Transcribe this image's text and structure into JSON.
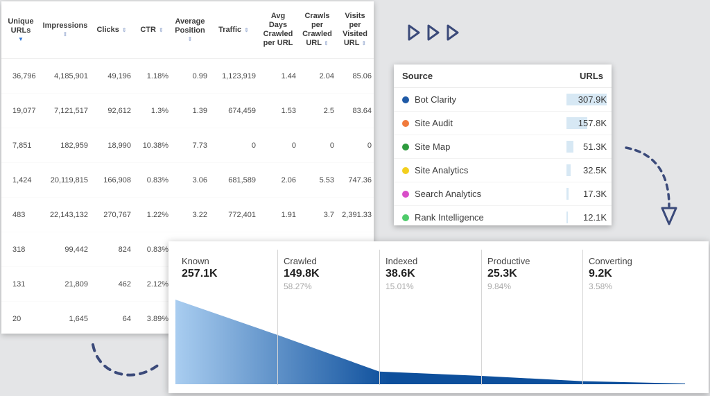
{
  "metrics_table": {
    "headers": [
      {
        "text": "Unique URLs",
        "lines": [
          "Unique",
          "URLs"
        ],
        "sort": "active"
      },
      {
        "text": "Impressions",
        "lines": [
          "Impressions"
        ],
        "sort": "default"
      },
      {
        "text": "Clicks",
        "lines": [
          "Clicks"
        ],
        "sort": "inline"
      },
      {
        "text": "CTR",
        "lines": [
          "CTR"
        ],
        "sort": "inline"
      },
      {
        "text": "Average Position",
        "lines": [
          "Average",
          "Position"
        ],
        "sort": "default"
      },
      {
        "text": "Traffic",
        "lines": [
          "Traffic"
        ],
        "sort": "inline"
      },
      {
        "text": "Avg Days Crawled per URL",
        "lines": [
          "Avg",
          "Days",
          "Crawled",
          "per URL"
        ],
        "sort": "none"
      },
      {
        "text": "Crawls per Crawled URL",
        "lines": [
          "Crawls",
          "per",
          "Crawled",
          "URL"
        ],
        "sort": "inline-last"
      },
      {
        "text": "Visits per Visited URL",
        "lines": [
          "Visits",
          "per",
          "Visited",
          "URL"
        ],
        "sort": "inline-last"
      }
    ],
    "rows": [
      [
        "36,796",
        "4,185,901",
        "49,196",
        "1.18%",
        "0.99",
        "1,123,919",
        "1.44",
        "2.04",
        "85.06"
      ],
      [
        "19,077",
        "7,121,517",
        "92,612",
        "1.3%",
        "1.39",
        "674,459",
        "1.53",
        "2.5",
        "83.64"
      ],
      [
        "7,851",
        "182,959",
        "18,990",
        "10.38%",
        "7.73",
        "0",
        "0",
        "0",
        "0"
      ],
      [
        "1,424",
        "20,119,815",
        "166,908",
        "0.83%",
        "3.06",
        "681,589",
        "2.06",
        "5.53",
        "747.36"
      ],
      [
        "483",
        "22,143,132",
        "270,767",
        "1.22%",
        "3.22",
        "772,401",
        "1.91",
        "3.7",
        "2,391.33"
      ],
      [
        "318",
        "99,442",
        "824",
        "0.83%",
        "",
        "",
        "",
        "",
        ""
      ],
      [
        "131",
        "21,809",
        "462",
        "2.12%",
        "",
        "",
        "",
        "",
        ""
      ],
      [
        "20",
        "1,645",
        "64",
        "3.89%",
        "",
        "",
        "",
        "",
        ""
      ]
    ]
  },
  "source_table": {
    "header_source": "Source",
    "header_urls": "URLs",
    "max_value_k": 307.9,
    "rows": [
      {
        "name": "Bot Clarity",
        "value": "307.9K",
        "value_k": 307.9,
        "color": "#1f5aa6"
      },
      {
        "name": "Site Audit",
        "value": "157.8K",
        "value_k": 157.8,
        "color": "#f07a3c"
      },
      {
        "name": "Site Map",
        "value": "51.3K",
        "value_k": 51.3,
        "color": "#2e9b3e"
      },
      {
        "name": "Site Analytics",
        "value": "32.5K",
        "value_k": 32.5,
        "color": "#f3cf1d"
      },
      {
        "name": "Search Analytics",
        "value": "17.3K",
        "value_k": 17.3,
        "color": "#d84ec8"
      },
      {
        "name": "Rank Intelligence",
        "value": "12.1K",
        "value_k": 12.1,
        "color": "#4ecb6a"
      }
    ]
  },
  "funnel": {
    "max_value_k": 257.1,
    "stages": [
      {
        "label": "Known",
        "value": "257.1K",
        "value_k": 257.1,
        "pct": ""
      },
      {
        "label": "Crawled",
        "value": "149.8K",
        "value_k": 149.8,
        "pct": "58.27%"
      },
      {
        "label": "Indexed",
        "value": "38.6K",
        "value_k": 38.6,
        "pct": "15.01%"
      },
      {
        "label": "Productive",
        "value": "25.3K",
        "value_k": 25.3,
        "pct": "9.84%"
      },
      {
        "label": "Converting",
        "value": "9.2K",
        "value_k": 9.2,
        "pct": "3.58%"
      }
    ],
    "colors": {
      "light": "#a9cdf0",
      "dark": "#0d4f9c"
    }
  },
  "decoration_color": "#3b4a7a"
}
